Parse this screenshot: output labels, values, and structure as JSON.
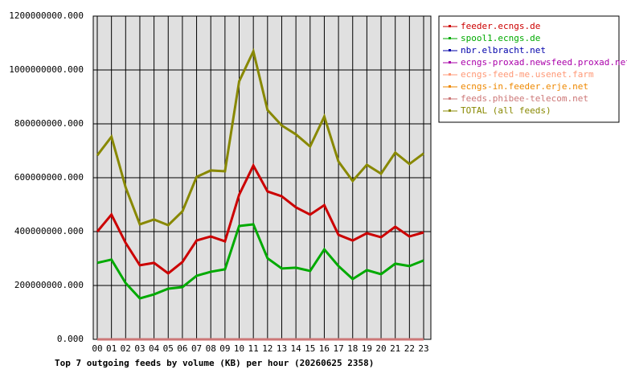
{
  "chart_data": {
    "type": "line",
    "title": "Top 7 outgoing feeds by volume (KB) per hour (20260625 2358)",
    "categories": [
      "00",
      "01",
      "02",
      "03",
      "04",
      "05",
      "06",
      "07",
      "08",
      "09",
      "10",
      "11",
      "12",
      "13",
      "14",
      "15",
      "16",
      "17",
      "18",
      "19",
      "20",
      "21",
      "22",
      "23"
    ],
    "series": [
      {
        "name": "feeder.ecngs.de",
        "color": "#cc0000",
        "values": [
          400000000,
          463000000,
          358000000,
          275000000,
          284000000,
          245000000,
          287000000,
          367000000,
          382000000,
          364000000,
          537000000,
          645000000,
          549000000,
          531000000,
          490000000,
          463000000,
          498000000,
          388000000,
          367000000,
          394000000,
          379000000,
          418000000,
          382000000,
          397000000
        ]
      },
      {
        "name": "spool1.ecngs.de",
        "color": "#00aa00",
        "values": [
          284000000,
          296000000,
          209000000,
          152000000,
          167000000,
          188000000,
          194000000,
          236000000,
          251000000,
          260000000,
          421000000,
          427000000,
          301000000,
          263000000,
          266000000,
          254000000,
          334000000,
          272000000,
          224000000,
          257000000,
          242000000,
          281000000,
          272000000,
          293000000
        ]
      },
      {
        "name": "nbr.elbracht.net",
        "color": "#0000aa",
        "values": [
          0,
          0,
          0,
          0,
          0,
          0,
          0,
          0,
          0,
          0,
          0,
          0,
          0,
          0,
          0,
          0,
          0,
          0,
          0,
          0,
          0,
          0,
          0,
          0
        ]
      },
      {
        "name": "ecngs-proxad.newsfeed.proxad.net",
        "color": "#aa00aa",
        "values": [
          0,
          0,
          0,
          0,
          0,
          0,
          0,
          0,
          0,
          0,
          0,
          0,
          0,
          0,
          0,
          0,
          0,
          0,
          0,
          0,
          0,
          0,
          0,
          0
        ]
      },
      {
        "name": "ecngs-feed-me.usenet.farm",
        "color": "#ff9977",
        "values": [
          0,
          0,
          0,
          0,
          0,
          0,
          0,
          0,
          0,
          0,
          0,
          0,
          0,
          0,
          0,
          0,
          0,
          0,
          0,
          0,
          0,
          0,
          0,
          0
        ]
      },
      {
        "name": "ecngs-in.feeder.erje.net",
        "color": "#ee8800",
        "values": [
          0,
          0,
          0,
          0,
          0,
          0,
          0,
          0,
          0,
          0,
          0,
          0,
          0,
          0,
          0,
          0,
          0,
          0,
          0,
          0,
          0,
          0,
          0,
          0
        ]
      },
      {
        "name": "feeds.phibee-telecom.net",
        "color": "#cc7777",
        "values": [
          0,
          0,
          0,
          0,
          0,
          0,
          0,
          0,
          0,
          0,
          0,
          0,
          0,
          0,
          0,
          0,
          0,
          0,
          0,
          0,
          0,
          0,
          0,
          0
        ]
      },
      {
        "name": "TOTAL (all feeds)",
        "color": "#888800",
        "values": [
          683000000,
          752000000,
          564000000,
          427000000,
          445000000,
          424000000,
          475000000,
          603000000,
          627000000,
          624000000,
          958000000,
          1069000000,
          851000000,
          794000000,
          761000000,
          716000000,
          827000000,
          660000000,
          588000000,
          648000000,
          615000000,
          693000000,
          651000000,
          690000000
        ]
      }
    ],
    "ylim": [
      0,
      1200000000
    ],
    "yticks": [
      {
        "value": 0,
        "label": "0.000"
      },
      {
        "value": 200000000,
        "label": "200000000.000"
      },
      {
        "value": 400000000,
        "label": "400000000.000"
      },
      {
        "value": 600000000,
        "label": "600000000.000"
      },
      {
        "value": 800000000,
        "label": "800000000.000"
      },
      {
        "value": 1000000000,
        "label": "1000000000.000"
      },
      {
        "value": 1200000000,
        "label": "1200000000.000"
      }
    ],
    "grid": true
  }
}
